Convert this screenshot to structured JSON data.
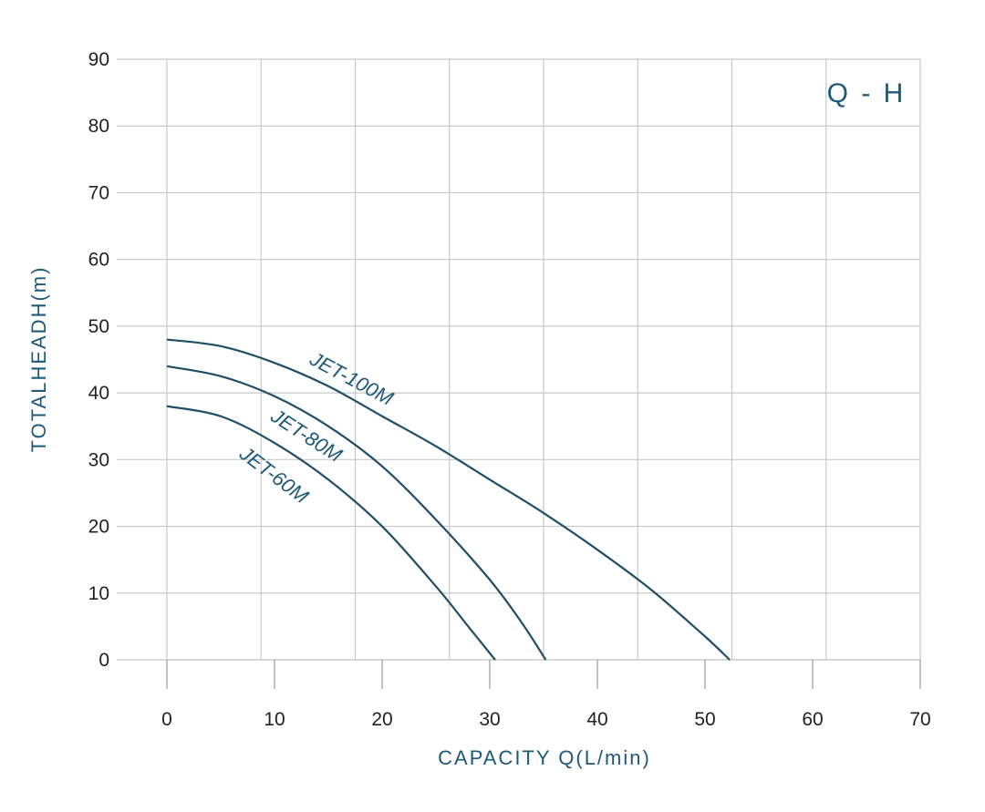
{
  "chart_data": {
    "type": "line",
    "title": "Q - H",
    "xlabel": "CAPACITY  Q(L/min)",
    "ylabel": "TOTALHEADH(m)",
    "xlim": [
      0,
      70
    ],
    "ylim": [
      0,
      90
    ],
    "x_ticks": [
      "0",
      "10",
      "20",
      "30",
      "40",
      "50",
      "60",
      "70"
    ],
    "y_ticks": [
      "0",
      "10",
      "20",
      "30",
      "40",
      "50",
      "60",
      "70",
      "80",
      "90"
    ],
    "grid": true,
    "series": [
      {
        "name": "JET-100M",
        "x": [
          0,
          5,
          10,
          15,
          20,
          25,
          30,
          35,
          40,
          45,
          50,
          52.3
        ],
        "y": [
          48,
          47,
          44.5,
          41,
          36.5,
          32,
          27,
          22,
          16.5,
          10.5,
          3.5,
          0
        ],
        "color": "#1f4f66"
      },
      {
        "name": "JET-80M",
        "x": [
          0,
          5,
          10,
          15,
          20,
          25,
          30,
          33,
          35.2
        ],
        "y": [
          44,
          42.5,
          39.5,
          35,
          29,
          21,
          12,
          5.5,
          0
        ],
        "color": "#1f4f66"
      },
      {
        "name": "JET-60M",
        "x": [
          0,
          5,
          10,
          15,
          20,
          25,
          28,
          30.5
        ],
        "y": [
          38,
          36.5,
          32.5,
          27,
          20,
          11,
          5,
          0
        ],
        "color": "#1f4f66"
      }
    ]
  }
}
